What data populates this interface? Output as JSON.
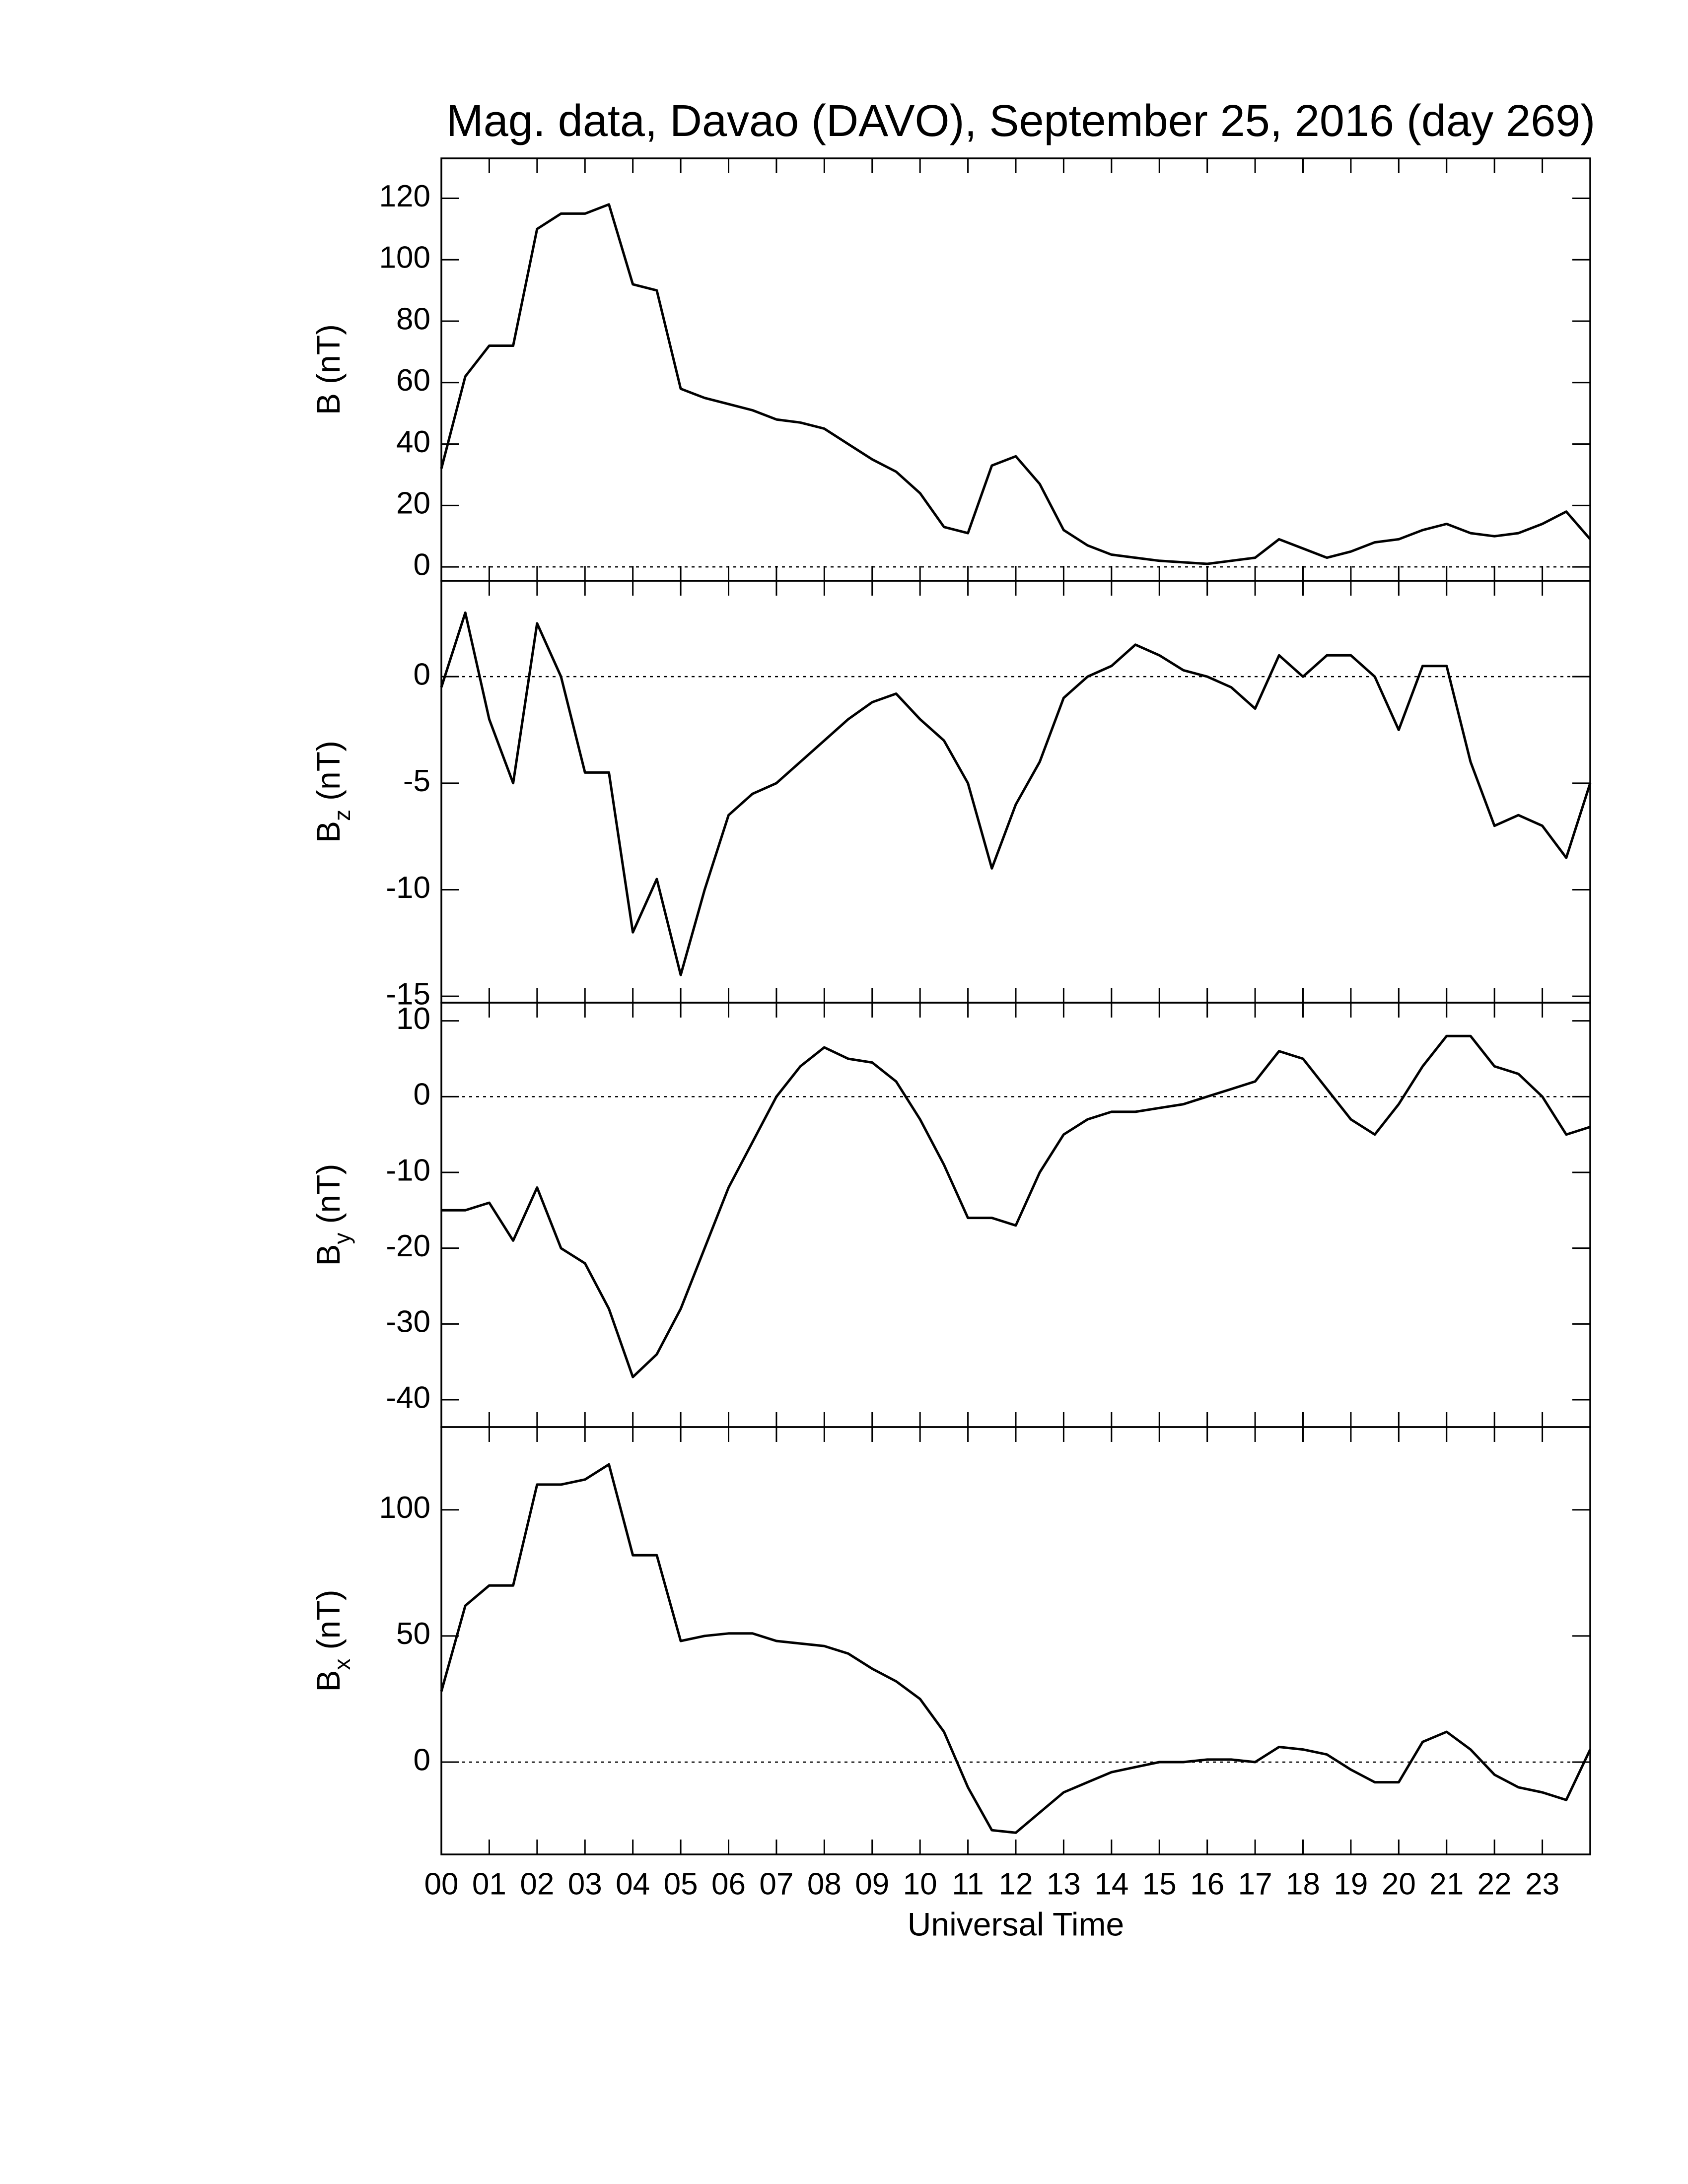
{
  "chart_data": [
    {
      "type": "line",
      "title": "Mag. data, Davao (DAVO), September 25, 2016 (day 269)",
      "ylabel": "B",
      "ylabel_unit": "(nT)",
      "color": "#000000",
      "zero_line": true,
      "xlim": [
        0,
        24
      ],
      "ylim": [
        -4.5,
        133
      ],
      "yticks": [
        0,
        20,
        40,
        60,
        80,
        100,
        120
      ],
      "x": [
        0,
        0.5,
        1,
        1.5,
        2,
        2.5,
        3,
        3.5,
        4,
        4.5,
        5,
        5.5,
        6,
        6.5,
        7,
        7.5,
        8,
        8.5,
        9,
        9.5,
        10,
        10.5,
        11,
        11.5,
        12,
        12.5,
        13,
        13.5,
        14,
        14.5,
        15,
        15.5,
        16,
        16.5,
        17,
        17.5,
        18,
        18.5,
        19,
        19.5,
        20,
        20.5,
        21,
        21.5,
        22,
        22.5,
        23,
        23.5,
        24
      ],
      "values": [
        32,
        62,
        72,
        72,
        110,
        115,
        115,
        118,
        92,
        90,
        58,
        55,
        53,
        51,
        48,
        47,
        45,
        40,
        35,
        31,
        24,
        13,
        11,
        33,
        36,
        27,
        12,
        7,
        4,
        3,
        2,
        1.5,
        1,
        2,
        3,
        9,
        6,
        3,
        5,
        8,
        9,
        12,
        14,
        11,
        10,
        11,
        14,
        18,
        9
      ]
    },
    {
      "type": "line",
      "ylabel": "B",
      "ylabel_sub": "z",
      "ylabel_unit": "(nT)",
      "color": "#000000",
      "zero_line": true,
      "xlim": [
        0,
        24
      ],
      "ylim": [
        -15.3,
        4.5
      ],
      "yticks": [
        -15,
        -10,
        -5,
        0
      ],
      "x": [
        0,
        0.5,
        1,
        1.5,
        2,
        2.5,
        3,
        3.5,
        4,
        4.5,
        5,
        5.5,
        6,
        6.5,
        7,
        7.5,
        8,
        8.5,
        9,
        9.5,
        10,
        10.5,
        11,
        11.5,
        12,
        12.5,
        13,
        13.5,
        14,
        14.5,
        15,
        15.5,
        16,
        16.5,
        17,
        17.5,
        18,
        18.5,
        19,
        19.5,
        20,
        20.5,
        21,
        21.5,
        22,
        22.5,
        23,
        23.5,
        24
      ],
      "values": [
        -0.5,
        3,
        -2,
        -5,
        2.5,
        0,
        -4.5,
        -4.5,
        -12,
        -9.5,
        -14,
        -10,
        -6.5,
        -5.5,
        -5,
        -4,
        -3,
        -2,
        -1.2,
        -0.8,
        -2,
        -3,
        -5,
        -9,
        -6,
        -4,
        -1,
        0,
        0.5,
        1.5,
        1,
        0.3,
        0,
        -0.5,
        -1.5,
        1,
        0,
        1,
        1,
        0,
        -2.5,
        0.5,
        0.5,
        -4,
        -7,
        -6.5,
        -7,
        -8.5,
        -5
      ]
    },
    {
      "type": "line",
      "ylabel": "B",
      "ylabel_sub": "y",
      "ylabel_unit": "(nT)",
      "color": "#000000",
      "zero_line": true,
      "xlim": [
        0,
        24
      ],
      "ylim": [
        -43.6,
        12.4
      ],
      "yticks": [
        -40,
        -30,
        -20,
        -10,
        0,
        10
      ],
      "x": [
        0,
        0.5,
        1,
        1.5,
        2,
        2.5,
        3,
        3.5,
        4,
        4.5,
        5,
        5.5,
        6,
        6.5,
        7,
        7.5,
        8,
        8.5,
        9,
        9.5,
        10,
        10.5,
        11,
        11.5,
        12,
        12.5,
        13,
        13.5,
        14,
        14.5,
        15,
        15.5,
        16,
        16.5,
        17,
        17.5,
        18,
        18.5,
        19,
        19.5,
        20,
        20.5,
        21,
        21.5,
        22,
        22.5,
        23,
        23.5,
        24
      ],
      "values": [
        -15,
        -15,
        -14,
        -19,
        -12,
        -20,
        -22,
        -28,
        -37,
        -34,
        -28,
        -20,
        -12,
        -6,
        0,
        4,
        6.5,
        5,
        4.5,
        2,
        -3,
        -9,
        -16,
        -16,
        -17,
        -10,
        -5,
        -3,
        -2,
        -2,
        -1.5,
        -1,
        0,
        1,
        2,
        6,
        5,
        1,
        -3,
        -5,
        -1,
        4,
        8,
        8,
        4,
        3,
        0,
        -5,
        -4
      ]
    },
    {
      "type": "line",
      "ylabel": "B",
      "ylabel_sub": "x",
      "ylabel_unit": "(nT)",
      "color": "#000000",
      "zero_line": true,
      "xlabel": "Universal Time",
      "xlim": [
        0,
        24
      ],
      "ylim": [
        -36.6,
        132.8
      ],
      "yticks": [
        0,
        50,
        100
      ],
      "xticks": [
        {
          "value": 0,
          "label": "00"
        },
        {
          "value": 1,
          "label": "01"
        },
        {
          "value": 2,
          "label": "02"
        },
        {
          "value": 3,
          "label": "03"
        },
        {
          "value": 4,
          "label": "04"
        },
        {
          "value": 5,
          "label": "05"
        },
        {
          "value": 6,
          "label": "06"
        },
        {
          "value": 7,
          "label": "07"
        },
        {
          "value": 8,
          "label": "08"
        },
        {
          "value": 9,
          "label": "09"
        },
        {
          "value": 10,
          "label": "10"
        },
        {
          "value": 11,
          "label": "11"
        },
        {
          "value": 12,
          "label": "12"
        },
        {
          "value": 13,
          "label": "13"
        },
        {
          "value": 14,
          "label": "14"
        },
        {
          "value": 15,
          "label": "15"
        },
        {
          "value": 16,
          "label": "16"
        },
        {
          "value": 17,
          "label": "17"
        },
        {
          "value": 18,
          "label": "18"
        },
        {
          "value": 19,
          "label": "19"
        },
        {
          "value": 20,
          "label": "20"
        },
        {
          "value": 21,
          "label": "21"
        },
        {
          "value": 22,
          "label": "22"
        },
        {
          "value": 23,
          "label": "23"
        }
      ],
      "x": [
        0,
        0.5,
        1,
        1.5,
        2,
        2.5,
        3,
        3.5,
        4,
        4.5,
        5,
        5.5,
        6,
        6.5,
        7,
        7.5,
        8,
        8.5,
        9,
        9.5,
        10,
        10.5,
        11,
        11.5,
        12,
        12.5,
        13,
        13.5,
        14,
        14.5,
        15,
        15.5,
        16,
        16.5,
        17,
        17.5,
        18,
        18.5,
        19,
        19.5,
        20,
        20.5,
        21,
        21.5,
        22,
        22.5,
        23,
        23.5,
        24
      ],
      "values": [
        28,
        62,
        70,
        70,
        110,
        110,
        112,
        118,
        82,
        82,
        48,
        50,
        51,
        51,
        48,
        47,
        46,
        43,
        37,
        32,
        25,
        12,
        -10,
        -27,
        -28,
        -20,
        -12,
        -8,
        -4,
        -2,
        0,
        0,
        1,
        1,
        0,
        6,
        5,
        3,
        -3,
        -8,
        -8,
        8,
        12,
        5,
        -5,
        -10,
        -12,
        -15,
        5
      ]
    }
  ]
}
